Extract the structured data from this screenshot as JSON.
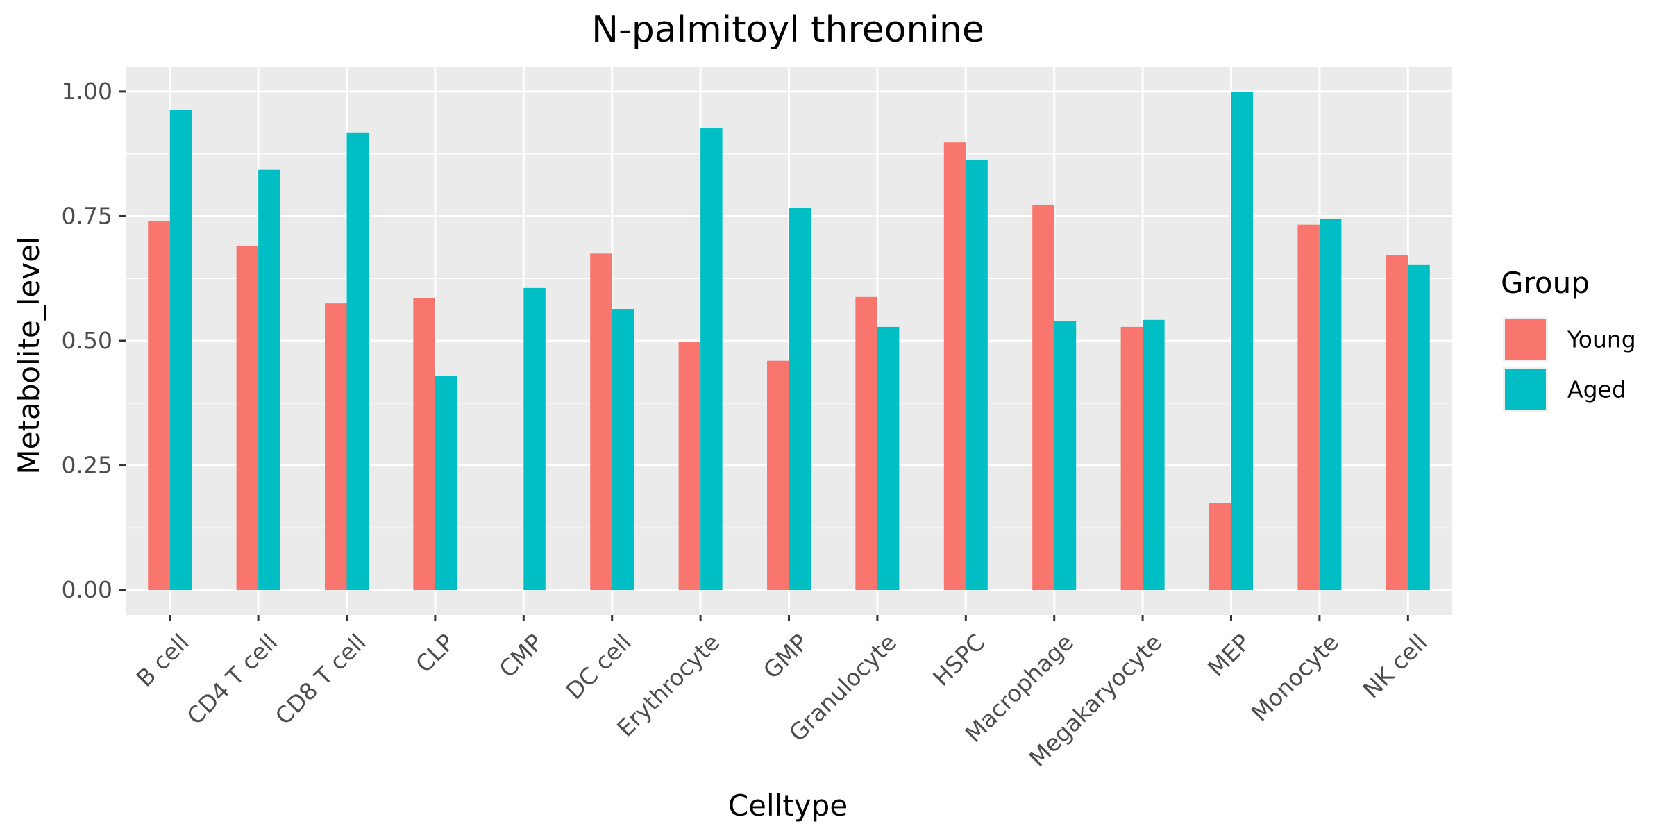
{
  "chart_data": {
    "type": "bar",
    "title": "N-palmitoyl threonine",
    "xlabel": "Celltype",
    "ylabel": "Metabolite_level",
    "categories": [
      "B cell",
      "CD4 T cell",
      "CD8 T cell",
      "CLP",
      "CMP",
      "DC cell",
      "Erythrocyte",
      "GMP",
      "Granulocyte",
      "HSPC",
      "Macrophage",
      "Megakaryocyte",
      "MEP",
      "Monocyte",
      "NK cell"
    ],
    "series": [
      {
        "name": "Young",
        "color": "#F8766D",
        "values": [
          0.74,
          0.69,
          0.575,
          0.585,
          0.0,
          0.675,
          0.498,
          0.46,
          0.588,
          0.898,
          0.773,
          0.528,
          0.175,
          0.733,
          0.672
        ]
      },
      {
        "name": "Aged",
        "color": "#00BFC4",
        "values": [
          0.963,
          0.843,
          0.918,
          0.43,
          0.606,
          0.564,
          0.926,
          0.767,
          0.528,
          0.863,
          0.54,
          0.542,
          1.0,
          0.744,
          0.652
        ]
      }
    ],
    "ylim": [
      -0.05,
      1.05
    ],
    "yticks": [
      0.0,
      0.25,
      0.5,
      0.75,
      1.0
    ],
    "ytick_labels": [
      "0.00",
      "0.25",
      "0.50",
      "0.75",
      "1.00"
    ],
    "grid": true,
    "legend": {
      "title": "Group",
      "position": "right"
    },
    "panel_background": "#EBEBEB",
    "grid_color": "#FFFFFF"
  }
}
